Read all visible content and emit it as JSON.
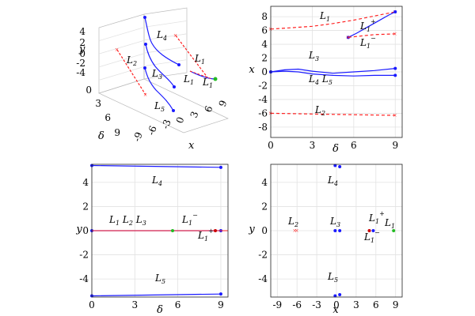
{
  "chart_data": [
    {
      "type": "line3d",
      "xlabel": "x",
      "ylabel": "y",
      "zlabel": "δ",
      "xticks": [
        "-9",
        "-6",
        "-3",
        "0",
        "3",
        "6",
        "9"
      ],
      "yticks": [
        "4",
        "2",
        "0",
        "-2",
        "-4"
      ],
      "zticks": [
        "0",
        "3",
        "6",
        "9"
      ],
      "series_labels": [
        "L1",
        "L2",
        "L3",
        "L4",
        "L5",
        "L1−",
        "L1+"
      ],
      "colors": {
        "stable": "#1a1aff",
        "unstable": "#ff2020",
        "green": "#22bb22",
        "red": "#cc0000"
      }
    },
    {
      "type": "line",
      "xlabel": "δ",
      "ylabel": "x",
      "xlim": [
        0,
        9.5
      ],
      "ylim": [
        -9.5,
        9.5
      ],
      "xticks": [
        "0",
        "3",
        "6",
        "9"
      ],
      "yticks": [
        "8",
        "6",
        "4",
        "2",
        "0",
        "-2",
        "-4",
        "-6",
        "-8"
      ],
      "series": [
        {
          "name": "L1",
          "style": "dashed",
          "color": "#ff2020",
          "x": [
            0,
            1.5,
            3,
            4.5,
            6,
            7.5,
            9
          ],
          "y": [
            6.2,
            6.4,
            6.6,
            7.0,
            7.5,
            8.1,
            8.7
          ]
        },
        {
          "name": "L1+",
          "style": "solid",
          "color": "#1a1aff",
          "x": [
            5.6,
            6.2,
            7.0,
            7.8,
            8.5,
            9
          ],
          "y": [
            5.0,
            5.6,
            6.5,
            7.4,
            8.2,
            8.7
          ]
        },
        {
          "name": "L1−",
          "style": "dashed",
          "color": "#ff2020",
          "x": [
            5.6,
            6.5,
            7.5,
            9
          ],
          "y": [
            5.0,
            5.2,
            5.4,
            5.5
          ]
        },
        {
          "name": "L3",
          "style": "solid",
          "color": "#1a1aff",
          "x": [
            0,
            1,
            2,
            3,
            4.5,
            6,
            7.5,
            9
          ],
          "y": [
            0,
            0.3,
            0.4,
            0.1,
            -0.2,
            0,
            0.2,
            0.5
          ]
        },
        {
          "name": "L4 L5",
          "style": "solid",
          "color": "#1a1aff",
          "x": [
            0,
            1,
            2,
            3,
            4.5,
            6,
            7.5,
            9
          ],
          "y": [
            0,
            0.1,
            0,
            -0.3,
            -0.5,
            -0.6,
            -0.5,
            -0.5
          ]
        },
        {
          "name": "L2",
          "style": "dashed",
          "color": "#ff2020",
          "x": [
            0,
            3,
            6,
            9
          ],
          "y": [
            -6,
            -6.1,
            -6.2,
            -6.3
          ]
        }
      ],
      "labels": [
        {
          "text": "L1",
          "sub": "1",
          "base": "L",
          "sup": ""
        },
        {
          "text": "L1+",
          "base": "L",
          "sub": "1",
          "sup": "+"
        },
        {
          "text": "L1−",
          "base": "L",
          "sub": "1",
          "sup": "−"
        },
        {
          "text": "L3",
          "base": "L",
          "sub": "3",
          "sup": ""
        },
        {
          "text": "L4 L5",
          "base": "L",
          "sub": "4",
          "sup": ""
        },
        {
          "text": "L2",
          "base": "L",
          "sub": "2",
          "sup": ""
        }
      ]
    },
    {
      "type": "line",
      "xlabel": "δ",
      "ylabel": "y",
      "xlim": [
        0,
        9.5
      ],
      "ylim": [
        -5.5,
        5.5
      ],
      "xticks": [
        "0",
        "3",
        "6",
        "9"
      ],
      "yticks": [
        "4",
        "2",
        "0",
        "-2",
        "-4"
      ],
      "series": [
        {
          "name": "L4",
          "color": "#1a1aff",
          "x": [
            0,
            9
          ],
          "y": [
            5.4,
            5.25
          ]
        },
        {
          "name": "L5",
          "color": "#1a1aff",
          "x": [
            0,
            9
          ],
          "y": [
            -5.4,
            -5.25
          ]
        },
        {
          "name": "L1 L2 L3",
          "color": "#1a1aff",
          "x": [
            0,
            9
          ],
          "y": [
            0,
            0
          ]
        }
      ],
      "labels": [
        "L4",
        "L5",
        "L1 L2 L3",
        "L1−",
        "L1+"
      ]
    },
    {
      "type": "scatter",
      "xlabel": "x",
      "ylabel": "y",
      "xlim": [
        -10,
        10
      ],
      "ylim": [
        -5.5,
        5.5
      ],
      "xticks": [
        "-9",
        "-6",
        "-3",
        "0",
        "3",
        "6",
        "9"
      ],
      "yticks": [
        "4",
        "2",
        "0",
        "-2",
        "-4"
      ],
      "points": [
        {
          "name": "L4",
          "x": -0.2,
          "y": 5.4,
          "color": "#1a1aff"
        },
        {
          "name": "L4",
          "x": 0.5,
          "y": 5.3,
          "color": "#1a1aff"
        },
        {
          "name": "L5",
          "x": -0.2,
          "y": -5.4,
          "color": "#1a1aff"
        },
        {
          "name": "L5",
          "x": 0.5,
          "y": -5.3,
          "color": "#1a1aff"
        },
        {
          "name": "L2",
          "x": -6.3,
          "y": 0,
          "color": "#ff2020"
        },
        {
          "name": "L2",
          "x": -6.0,
          "y": 0,
          "color": "#ff2020"
        },
        {
          "name": "L3",
          "x": -0.2,
          "y": 0,
          "color": "#1a1aff"
        },
        {
          "name": "L3",
          "x": 0.5,
          "y": 0,
          "color": "#1a1aff"
        },
        {
          "name": "L1−",
          "x": 5.0,
          "y": 0,
          "color": "#cc0000"
        },
        {
          "name": "L1+",
          "x": 5.6,
          "y": 0,
          "color": "#1a1aff"
        },
        {
          "name": "L1",
          "x": 8.7,
          "y": 0,
          "color": "#22bb22"
        }
      ],
      "labels": [
        "L4",
        "L5",
        "L2",
        "L3",
        "L1+",
        "L1",
        "L1−"
      ]
    }
  ]
}
